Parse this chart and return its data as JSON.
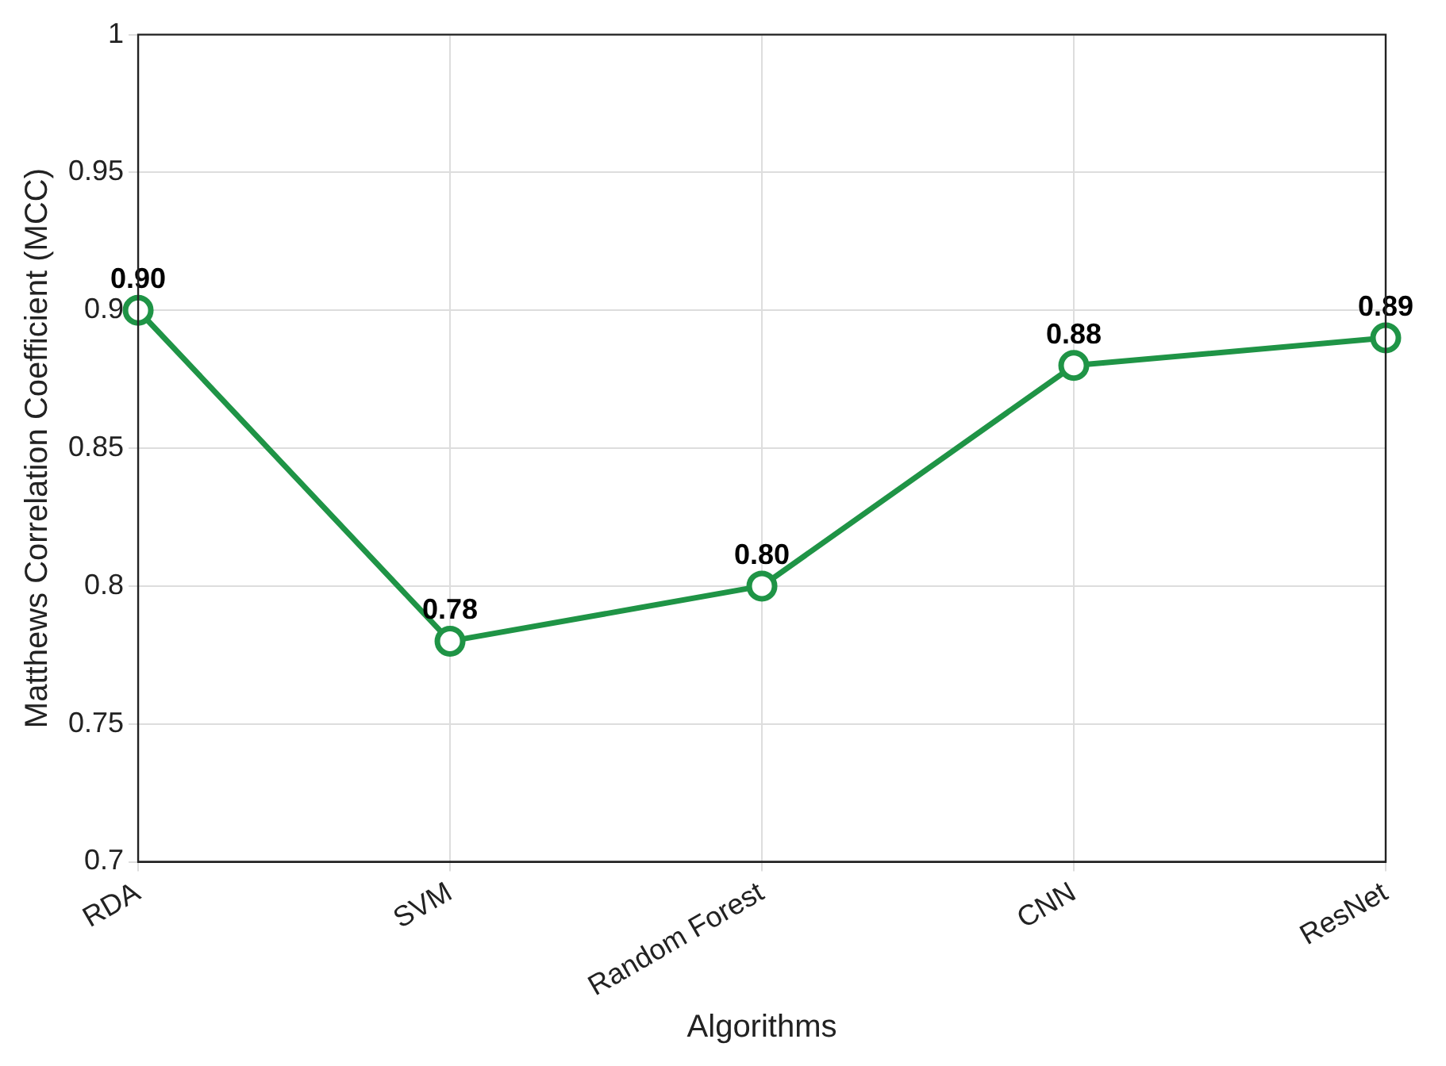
{
  "chart_data": {
    "type": "line",
    "xlabel": "Algorithms",
    "ylabel": "Matthews Correlation Coefficient (MCC)",
    "categories": [
      "RDA",
      "SVM",
      "Random Forest",
      "CNN",
      "ResNet"
    ],
    "series": [
      {
        "color": "#1f9446",
        "values": [
          0.9,
          0.78,
          0.8,
          0.88,
          0.89
        ],
        "value_labels": [
          "0.90",
          "0.78",
          "0.80",
          "0.88",
          "0.89"
        ]
      }
    ],
    "ylim": [
      0.7,
      1
    ],
    "yticks": [
      0.7,
      0.75,
      0.8,
      0.85,
      0.9,
      0.95,
      1
    ],
    "grid": true,
    "legend": false,
    "marker": "circle",
    "line_style": "solid"
  }
}
